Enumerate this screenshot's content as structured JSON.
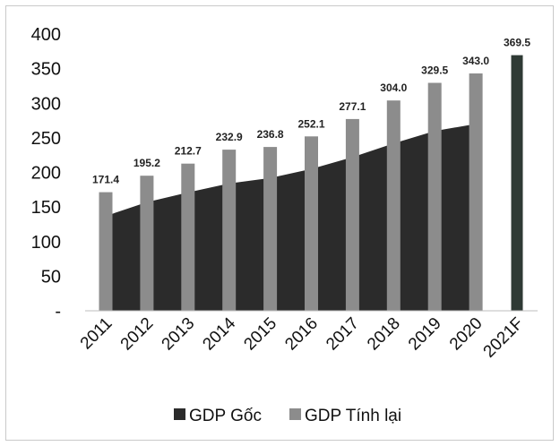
{
  "chart_data": {
    "type": "bar",
    "categories": [
      "2011",
      "2012",
      "2013",
      "2014",
      "2015",
      "2016",
      "2017",
      "2018",
      "2019",
      "2020",
      "2021F"
    ],
    "series": [
      {
        "name": "GDP Gốc",
        "kind": "area",
        "color": "#2b2b2b",
        "values": [
          137,
          157,
          171,
          184,
          192,
          205,
          222,
          242,
          260,
          270,
          null
        ]
      },
      {
        "name": "GDP Tính lại",
        "kind": "bar",
        "color": "#8c8c8c",
        "values": [
          171.4,
          195.2,
          212.7,
          232.9,
          236.8,
          252.1,
          277.1,
          304.0,
          329.5,
          343.0,
          null
        ]
      },
      {
        "name": "",
        "kind": "bar",
        "color": "#2f3a35",
        "values": [
          null,
          null,
          null,
          null,
          null,
          null,
          null,
          null,
          null,
          null,
          369.5
        ]
      }
    ],
    "data_labels": [
      "171.4",
      "195.2",
      "212.7",
      "232.9",
      "236.8",
      "252.1",
      "277.1",
      "304.0",
      "329.5",
      "343.0",
      "369.5"
    ],
    "yticks": [
      "-",
      "50",
      "100",
      "150",
      "200",
      "250",
      "300",
      "350",
      "400"
    ],
    "ylim": [
      0,
      400
    ],
    "grid": false,
    "legend_position": "bottom",
    "title": "",
    "xlabel": "",
    "ylabel": ""
  }
}
